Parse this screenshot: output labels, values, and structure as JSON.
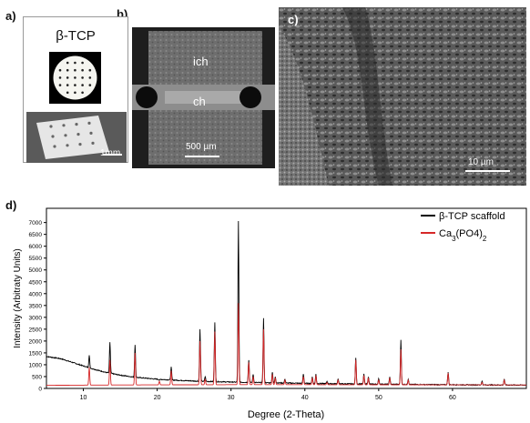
{
  "panels": {
    "a": {
      "label": "a)",
      "title": "β-TCP",
      "scalebar": "1mm"
    },
    "b": {
      "label": "b)",
      "ich": "ich",
      "ch": "ch",
      "scalebar": "500 µm"
    },
    "c": {
      "label": "c)",
      "scalebar": "10 µm"
    },
    "d": {
      "label": "d)"
    }
  },
  "chart_data": {
    "type": "line",
    "xlabel": "Degree (2-Theta)",
    "ylabel": "Intensity (Arbitraty Units)",
    "xlim": [
      5,
      70
    ],
    "ylim": [
      0,
      7600
    ],
    "xticks": [
      10,
      20,
      30,
      40,
      50,
      60
    ],
    "yticks": [
      0,
      500,
      1000,
      1500,
      2000,
      2500,
      3000,
      3500,
      4000,
      4500,
      5000,
      5500,
      6000,
      6500,
      7000
    ],
    "legend_position": "top-right",
    "series": [
      {
        "name": "β-TCP scaffold",
        "color": "#000000",
        "baseline": [
          [
            5,
            1350
          ],
          [
            7,
            1250
          ],
          [
            9,
            1050
          ],
          [
            11,
            850
          ],
          [
            13,
            680
          ],
          [
            15,
            560
          ],
          [
            17,
            470
          ],
          [
            20,
            390
          ],
          [
            23,
            340
          ],
          [
            26,
            300
          ],
          [
            30,
            270
          ],
          [
            35,
            240
          ],
          [
            40,
            215
          ],
          [
            45,
            195
          ],
          [
            50,
            180
          ],
          [
            55,
            165
          ],
          [
            60,
            155
          ],
          [
            65,
            145
          ],
          [
            70,
            140
          ]
        ],
        "peaks": [
          [
            10.8,
            1400
          ],
          [
            13.6,
            1950
          ],
          [
            17.0,
            1850
          ],
          [
            20.3,
            350
          ],
          [
            21.9,
            900
          ],
          [
            25.8,
            2500
          ],
          [
            26.5,
            500
          ],
          [
            27.8,
            2800
          ],
          [
            31.0,
            7050
          ],
          [
            32.4,
            1200
          ],
          [
            33.0,
            600
          ],
          [
            34.4,
            2950
          ],
          [
            35.6,
            700
          ],
          [
            36.0,
            500
          ],
          [
            37.3,
            400
          ],
          [
            39.8,
            600
          ],
          [
            41.0,
            500
          ],
          [
            41.5,
            600
          ],
          [
            43.0,
            300
          ],
          [
            44.5,
            400
          ],
          [
            46.9,
            1300
          ],
          [
            48.0,
            600
          ],
          [
            48.6,
            500
          ],
          [
            50.0,
            400
          ],
          [
            51.5,
            500
          ],
          [
            53.0,
            2050
          ],
          [
            54.0,
            400
          ],
          [
            59.4,
            700
          ],
          [
            64.0,
            300
          ],
          [
            67.0,
            400
          ]
        ]
      },
      {
        "name": "Ca3(PO4)2",
        "color": "#d62728",
        "baseline": [
          [
            5,
            130
          ],
          [
            10,
            140
          ],
          [
            20,
            150
          ],
          [
            30,
            160
          ],
          [
            40,
            160
          ],
          [
            50,
            155
          ],
          [
            60,
            150
          ],
          [
            70,
            145
          ]
        ],
        "peaks": [
          [
            10.8,
            900
          ],
          [
            13.6,
            1200
          ],
          [
            17.0,
            1500
          ],
          [
            20.3,
            300
          ],
          [
            21.9,
            750
          ],
          [
            25.8,
            2000
          ],
          [
            26.5,
            400
          ],
          [
            27.8,
            2400
          ],
          [
            31.0,
            3600
          ],
          [
            32.4,
            1100
          ],
          [
            33.0,
            500
          ],
          [
            34.4,
            2500
          ],
          [
            35.6,
            600
          ],
          [
            36.0,
            450
          ],
          [
            37.3,
            350
          ],
          [
            39.8,
            500
          ],
          [
            41.0,
            450
          ],
          [
            41.5,
            550
          ],
          [
            43.0,
            250
          ],
          [
            44.5,
            350
          ],
          [
            46.9,
            1200
          ],
          [
            48.0,
            550
          ],
          [
            48.6,
            450
          ],
          [
            50.0,
            350
          ],
          [
            51.5,
            450
          ],
          [
            53.0,
            1650
          ],
          [
            54.0,
            350
          ],
          [
            59.4,
            650
          ],
          [
            64.0,
            250
          ],
          [
            67.0,
            350
          ]
        ]
      }
    ]
  }
}
